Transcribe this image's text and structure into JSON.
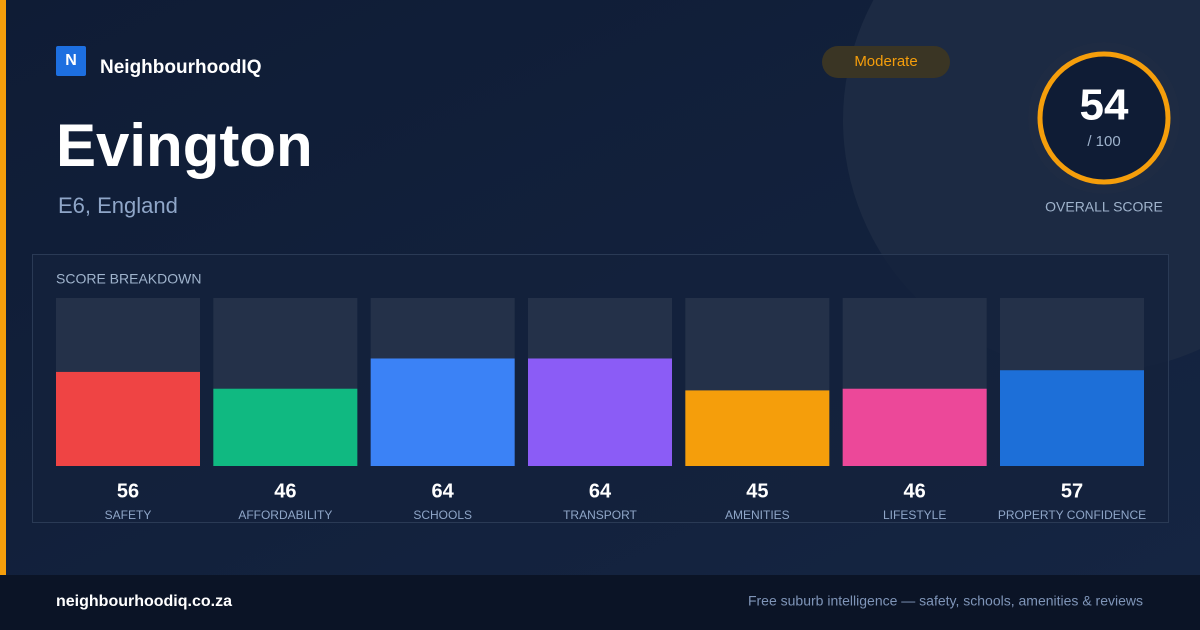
{
  "brand": {
    "logo": "N",
    "name": "NeighbourhoodIQ"
  },
  "badge": "Moderate",
  "title": "Evington",
  "subtitle": "E6, England",
  "score": {
    "value": 54,
    "max": {
      "value": 100,
      "label": "/ 100"
    },
    "label": "OVERALL SCORE"
  },
  "breakdown": {
    "title": "SCORE BREAKDOWN",
    "ylim": [
      0,
      100
    ],
    "categories": [
      "SAFETY",
      "AFFORDABILITY",
      "SCHOOLS",
      "TRANSPORT",
      "AMENITIES",
      "LIFESTYLE",
      "PROPERTY CONFIDENCE"
    ],
    "values": [
      56,
      46,
      64,
      64,
      45,
      46,
      57
    ],
    "colors": [
      "#ef4444",
      "#10b981",
      "#3b82f6",
      "#8b5cf6",
      "#f59e0b",
      "#ec4899",
      "#1d6fd8"
    ]
  },
  "footer": {
    "site": "neighbourhoodiq.co.za",
    "tagline": "Free suburb intelligence — safety, schools, amenities & reviews"
  }
}
